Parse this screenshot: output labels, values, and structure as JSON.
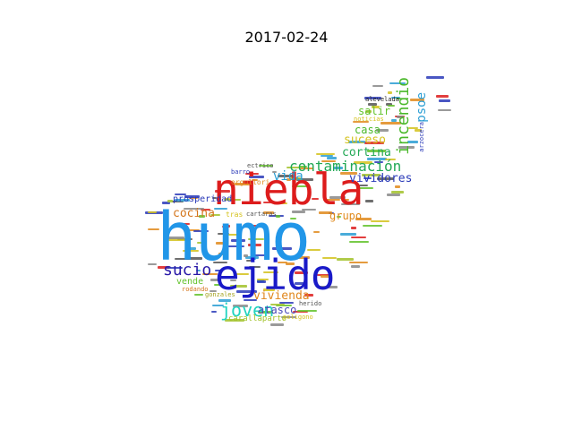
{
  "title": "2017-02-24",
  "words": {
    "humo": {
      "text": "humo",
      "color": "#2196e8"
    },
    "niebla": {
      "text": "niebla",
      "color": "#dd1c1c"
    },
    "ejido": {
      "text": "ejido",
      "color": "#1a1ac8"
    },
    "contaminacion": {
      "text": "contaminación",
      "color": "#22a855"
    },
    "incendio": {
      "text": "incendio",
      "color": "#4ab82a"
    },
    "sucio": {
      "text": "sucio",
      "color": "#2a1aa8"
    },
    "joven": {
      "text": "joven",
      "color": "#21d4c0"
    },
    "vivienda": {
      "text": "vivienda",
      "color": "#e0861c"
    },
    "cocina": {
      "text": "cocina",
      "color": "#d4761c"
    },
    "vividores": {
      "text": "vividores",
      "color": "#2a3ab8"
    },
    "vida": {
      "text": "vida",
      "color": "#2a9ed4"
    },
    "grupo": {
      "text": "grupo",
      "color": "#e08a1c"
    },
    "cortina": {
      "text": "cortina",
      "color": "#22a855"
    },
    "suceso": {
      "text": "suceso",
      "color": "#d4c21c"
    },
    "casa": {
      "text": "casa",
      "color": "#4ab82a"
    },
    "salir": {
      "text": "salir",
      "color": "#62c22a"
    },
    "psoe": {
      "text": "psoe",
      "color": "#2a9ed4"
    },
    "prosperidad": {
      "text": "prosperidad",
      "color": "#2a3ab8"
    },
    "atasco": {
      "text": "atasco",
      "color": "#4a4ab8"
    },
    "vende": {
      "text": "vende",
      "color": "#62c22a"
    },
    "carallaparto": {
      "text": "carallaparto",
      "color": "#a2c22a"
    },
    "orgullori": {
      "text": "orgullori",
      "color": "#e08a1c"
    },
    "noticias": {
      "text": "noticias",
      "color": "#d4c21c"
    },
    "tras": {
      "text": "tras",
      "color": "#d4c21c"
    },
    "cartaras": {
      "text": "cartaras",
      "color": "#555555"
    },
    "alevelada": {
      "text": "alevelada",
      "color": "#222222"
    },
    "rodando": {
      "text": "rodando",
      "color": "#d4761c"
    },
    "gonzales": {
      "text": "gonzales",
      "color": "#a2a21c"
    },
    "poligono": {
      "text": "poligono",
      "color": "#d4c21c"
    },
    "herido": {
      "text": "herido",
      "color": "#555555"
    },
    "electrico": {
      "text": "ectrico",
      "color": "#555555"
    },
    "barro": {
      "text": "barro",
      "color": "#2a3ab8"
    },
    "alcorcera": {
      "text": "arzocera",
      "color": "#2a3ab8"
    }
  }
}
